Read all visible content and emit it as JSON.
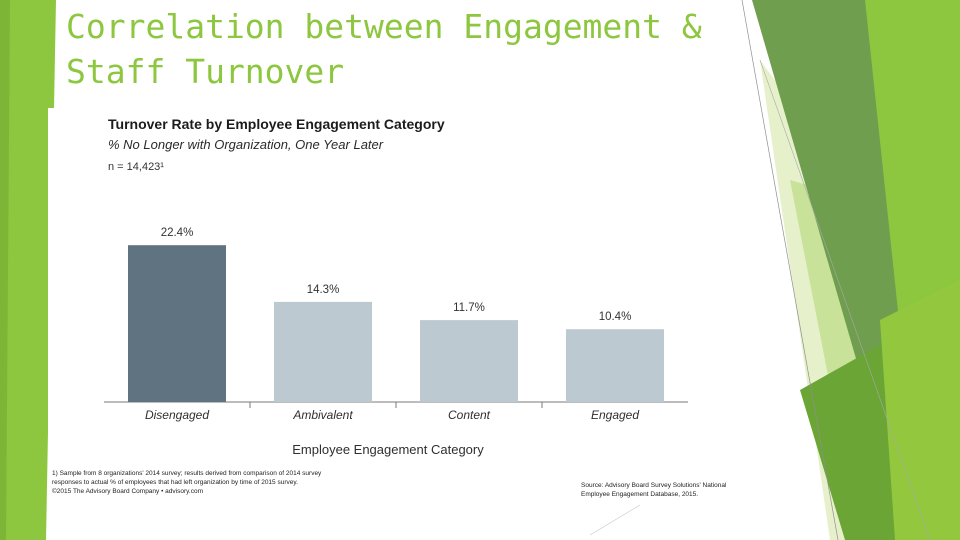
{
  "slide": {
    "title": "Correlation between Engagement & Staff Turnover",
    "title_color": "#8dc63f",
    "accent_colors": [
      "#8dc63f",
      "#6aa536",
      "#c7e19a",
      "#e3f0c8"
    ]
  },
  "chart_header": {
    "title": "Turnover Rate by Employee Engagement Category",
    "subtitle": "% No Longer with Organization, One Year Later",
    "sample": "n = 14,423¹"
  },
  "chart_data": {
    "type": "bar",
    "title": "Turnover Rate by Employee Engagement Category",
    "subtitle": "% No Longer with Organization, One Year Later",
    "xlabel": "Employee Engagement Category",
    "ylabel": "",
    "categories": [
      "Disengaged",
      "Ambivalent",
      "Content",
      "Engaged"
    ],
    "values": [
      22.4,
      14.3,
      11.7,
      10.4
    ],
    "value_labels": [
      "22.4%",
      "14.3%",
      "11.7%",
      "10.4%"
    ],
    "colors": [
      "#5f7380",
      "#bdc9d0",
      "#bdc9d0",
      "#bdc9d0"
    ],
    "ylim": [
      0,
      30
    ],
    "grid": false,
    "legend": "none"
  },
  "footer": {
    "footnote": "1) Sample from 8 organizations' 2014 survey; results derived from comparison of 2014 survey responses to actual % of employees that had left organization by time of 2015 survey.",
    "copyright": "©2015 The Advisory Board Company • advisory.com",
    "source": "Source: Advisory Board Survey Solutions' National Employee Engagement Database, 2015."
  }
}
